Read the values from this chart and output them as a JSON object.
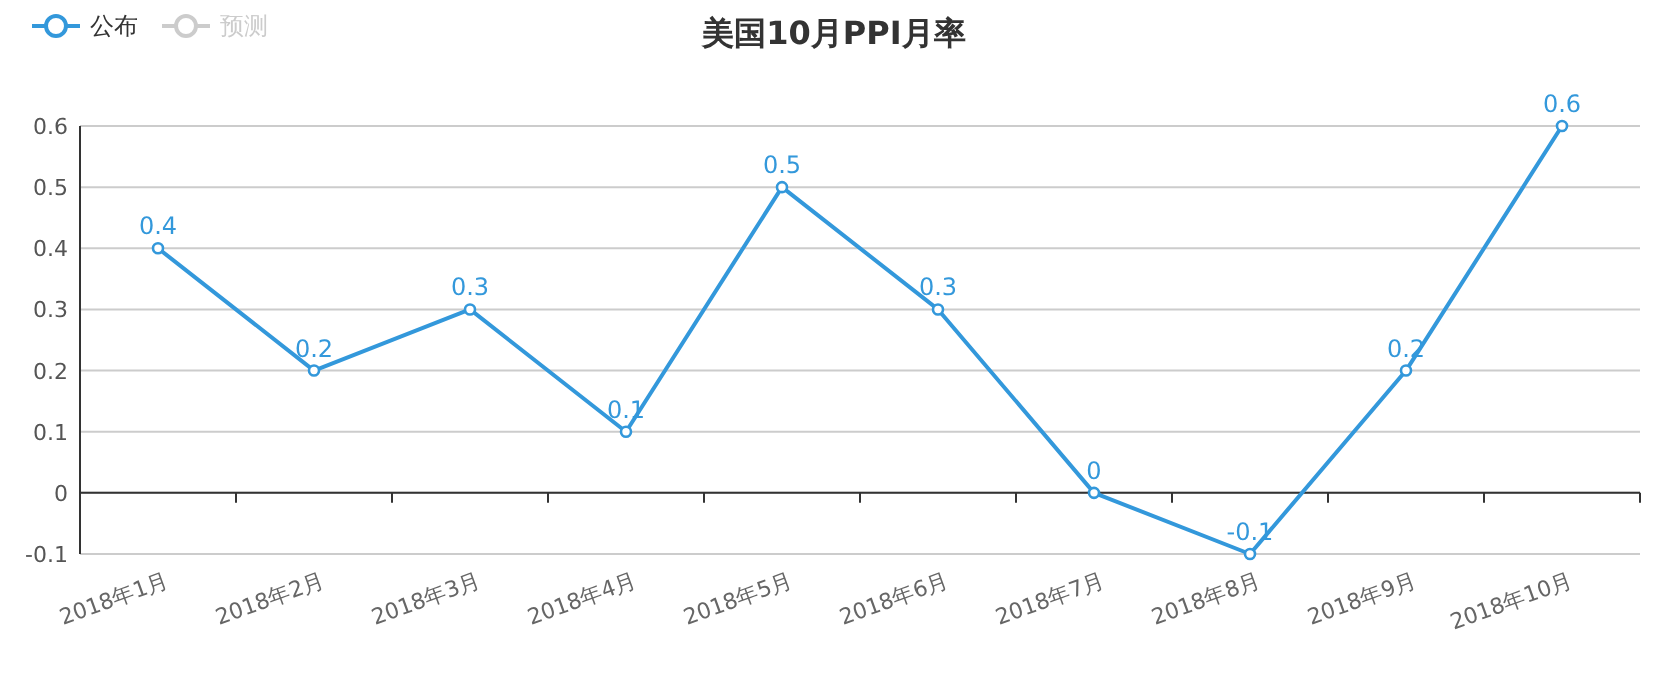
{
  "chart_data": {
    "type": "line",
    "title": "美国10月PPI月率",
    "categories": [
      "2018年1月",
      "2018年2月",
      "2018年3月",
      "2018年4月",
      "2018年5月",
      "2018年6月",
      "2018年7月",
      "2018年8月",
      "2018年9月",
      "2018年10月"
    ],
    "series": [
      {
        "name": "公布",
        "color": "#3398db",
        "values": [
          0.4,
          0.2,
          0.3,
          0.1,
          0.5,
          0.3,
          0,
          -0.1,
          0.2,
          0.6
        ]
      },
      {
        "name": "预测",
        "color": "#cccccc",
        "values": [
          null,
          null,
          null,
          null,
          null,
          null,
          null,
          null,
          null,
          null
        ]
      }
    ],
    "ylim": [
      -0.1,
      0.6
    ],
    "yticks": [
      -0.1,
      0,
      0.1,
      0.2,
      0.3,
      0.4,
      0.5,
      0.6
    ],
    "grid": "y",
    "legend": "top left",
    "marker": "circle",
    "data_labels": true
  }
}
